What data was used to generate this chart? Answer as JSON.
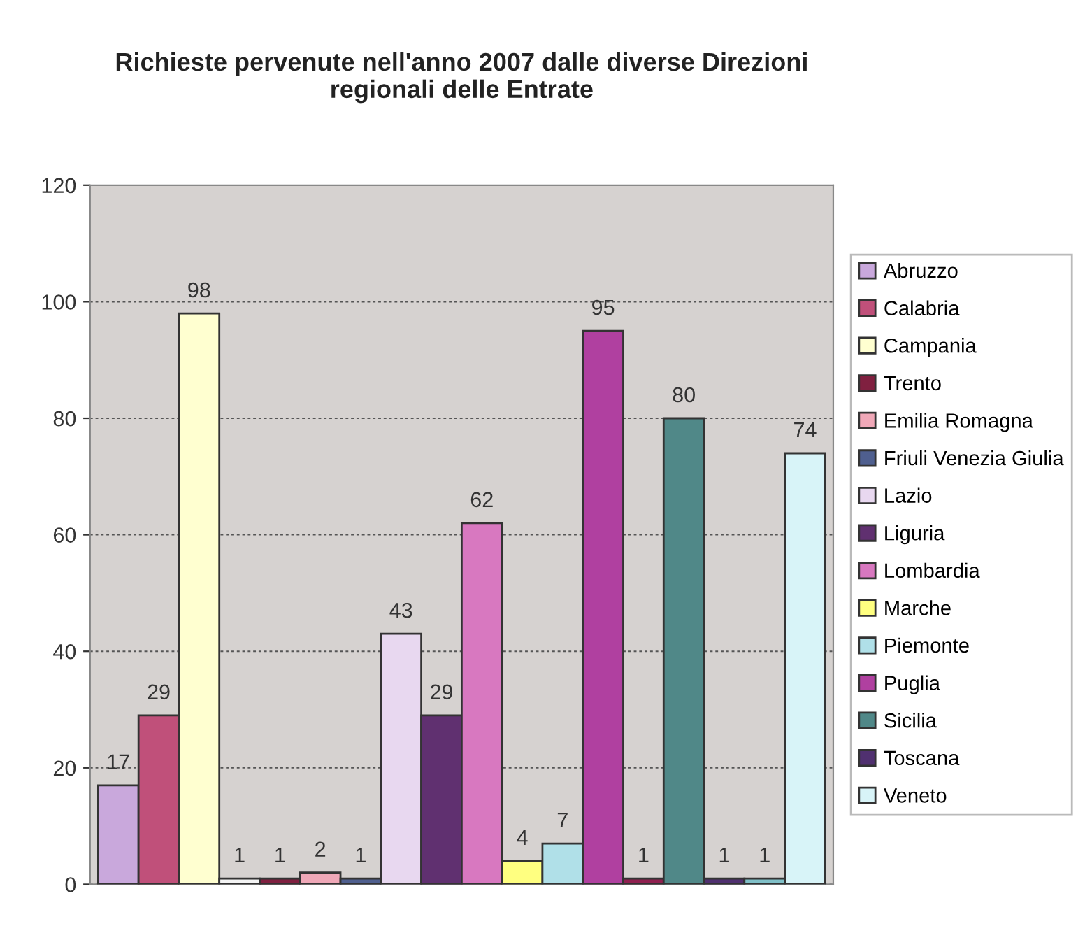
{
  "chart_data": {
    "type": "bar",
    "title": "Richieste pervenute nell'anno 2007 dalle diverse Direzioni\nregionali delle Entrate",
    "categories": [
      null
    ],
    "series": [
      {
        "name": "Abruzzo",
        "color": "#c9a8dc",
        "values": [
          17
        ]
      },
      {
        "name": "Calabria",
        "color": "#c0507a",
        "values": [
          29
        ]
      },
      {
        "name": "Campania",
        "color": "#ffffd0",
        "values": [
          98
        ]
      },
      {
        "color": "#f4f4f4",
        "values": [
          1
        ]
      },
      {
        "name": "Trento",
        "color": "#802040",
        "values": [
          1
        ]
      },
      {
        "name": "Emilia Romagna",
        "color": "#f0a8b8",
        "values": [
          2
        ]
      },
      {
        "name": "Friuli Venezia Giulia",
        "color": "#4f5f8f",
        "values": [
          1
        ]
      },
      {
        "name": "Lazio",
        "color": "#e8d8f0",
        "values": [
          43
        ]
      },
      {
        "name": "Liguria",
        "color": "#603070",
        "values": [
          29
        ]
      },
      {
        "name": "Lombardia",
        "color": "#d878c0",
        "values": [
          62
        ]
      },
      {
        "name": "Marche",
        "color": "#ffff80",
        "values": [
          4
        ]
      },
      {
        "name": "Piemonte",
        "color": "#b0e0e8",
        "values": [
          7
        ]
      },
      {
        "name": "Puglia",
        "color": "#b040a0",
        "values": [
          95
        ]
      },
      {
        "color": "#902050",
        "values": [
          1
        ]
      },
      {
        "name": "Sicilia",
        "color": "#508888",
        "values": [
          80
        ]
      },
      {
        "name": "Toscana",
        "color": "#503070",
        "values": [
          1
        ]
      },
      {
        "color": "#80c0c8",
        "values": [
          1
        ]
      },
      {
        "name": "Veneto",
        "color": "#d8f4f8",
        "values": [
          74
        ]
      }
    ],
    "ylim": [
      0,
      120
    ],
    "yticks": [
      0,
      20,
      40,
      60,
      80,
      100,
      120
    ],
    "grid": "y",
    "legend": "right",
    "data_labels": true
  }
}
